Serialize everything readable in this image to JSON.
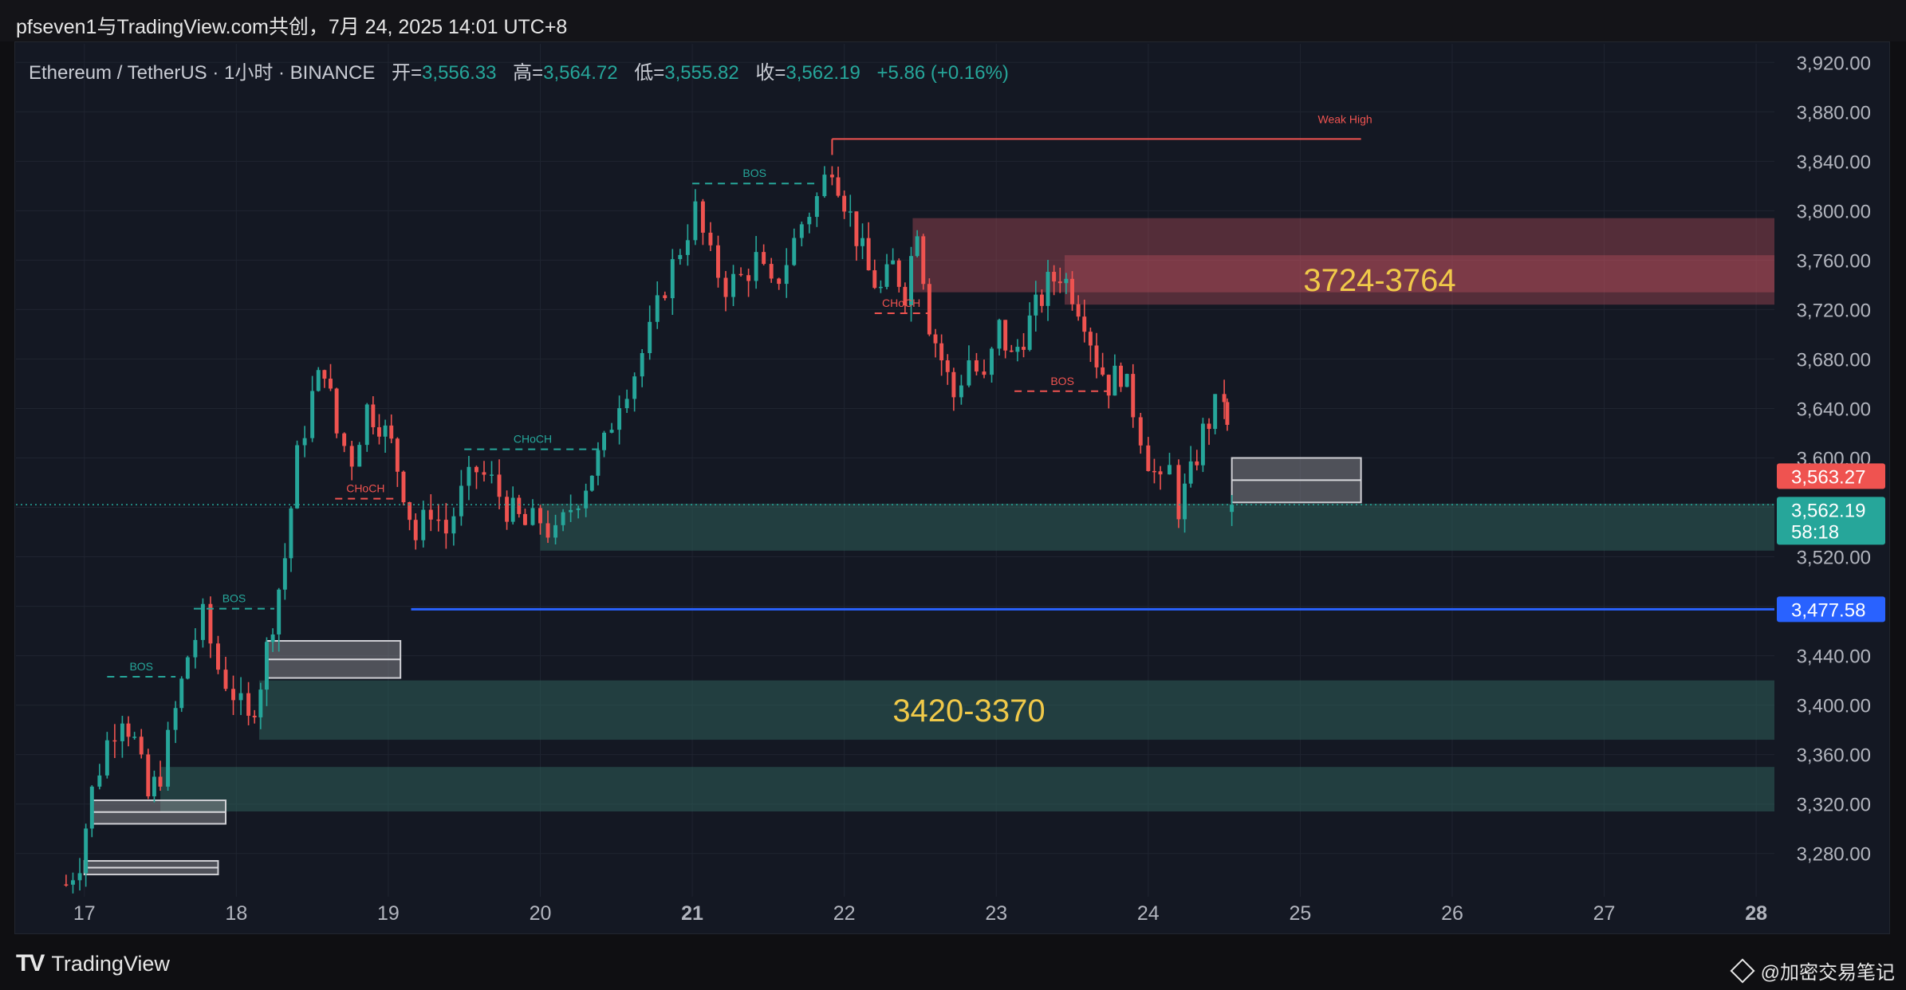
{
  "header": {
    "title": "pfseven1与TradingView.com共创，7月 24, 2025 14:01 UTC+8"
  },
  "legend": {
    "symbol": "Ethereum / TetherUS · 1小时 · BINANCE",
    "open_label": "开=",
    "open_value": "3,556.33",
    "high_label": "高=",
    "high_value": "3,564.72",
    "low_label": "低=",
    "low_value": "3,555.82",
    "close_label": "收=",
    "close_value": "3,562.19",
    "change": "+5.86 (+0.16%)"
  },
  "footer": {
    "brand": "TradingView",
    "watermark": "@加密交易笔记"
  },
  "colors": {
    "up": "#26a69a",
    "down": "#ef5350",
    "background": "#141823",
    "grid": "#1f2430",
    "blue_line": "#2962ff",
    "zone_label": "#f0c949"
  },
  "chart_data": {
    "type": "candlestick",
    "symbol": "ETHUSDT",
    "interval": "1h",
    "exchange": "BINANCE",
    "y_axis": {
      "min": 3245,
      "max": 3935,
      "ticks": [
        3920,
        3880,
        3840,
        3800,
        3760,
        3720,
        3680,
        3640,
        3600,
        3560,
        3520,
        3480,
        3440,
        3400,
        3360,
        3320,
        3280
      ],
      "tick_labels": [
        "3,920.00",
        "3,880.00",
        "3,840.00",
        "3,800.00",
        "3,760.00",
        "3,720.00",
        "3,680.00",
        "3,640.00",
        "3,600.00",
        "",
        "3,520.00",
        "",
        "3,440.00",
        "3,400.00",
        "3,360.00",
        "3,320.00",
        "3,280.00"
      ]
    },
    "x_axis": {
      "min": 16.55,
      "max": 28.12,
      "ticks": [
        {
          "value": 17,
          "label": "17",
          "bold": false
        },
        {
          "value": 18,
          "label": "18",
          "bold": false
        },
        {
          "value": 19,
          "label": "19",
          "bold": false
        },
        {
          "value": 20,
          "label": "20",
          "bold": false
        },
        {
          "value": 21,
          "label": "21",
          "bold": true
        },
        {
          "value": 22,
          "label": "22",
          "bold": false
        },
        {
          "value": 23,
          "label": "23",
          "bold": false
        },
        {
          "value": 24,
          "label": "24",
          "bold": false
        },
        {
          "value": 25,
          "label": "25",
          "bold": false
        },
        {
          "value": 26,
          "label": "26",
          "bold": false
        },
        {
          "value": 27,
          "label": "27",
          "bold": false
        },
        {
          "value": 28,
          "label": "28",
          "bold": true
        }
      ]
    },
    "price_path": [
      [
        16.88,
        3255
      ],
      [
        16.97,
        3275
      ],
      [
        17.05,
        3330
      ],
      [
        17.15,
        3370
      ],
      [
        17.25,
        3395
      ],
      [
        17.33,
        3370
      ],
      [
        17.42,
        3325
      ],
      [
        17.5,
        3345
      ],
      [
        17.6,
        3395
      ],
      [
        17.68,
        3440
      ],
      [
        17.78,
        3470
      ],
      [
        17.88,
        3430
      ],
      [
        17.98,
        3410
      ],
      [
        18.08,
        3385
      ],
      [
        18.16,
        3420
      ],
      [
        18.24,
        3470
      ],
      [
        18.32,
        3520
      ],
      [
        18.4,
        3600
      ],
      [
        18.5,
        3650
      ],
      [
        18.58,
        3675
      ],
      [
        18.66,
        3620
      ],
      [
        18.76,
        3600
      ],
      [
        18.86,
        3640
      ],
      [
        18.94,
        3630
      ],
      [
        19.02,
        3610
      ],
      [
        19.1,
        3575
      ],
      [
        19.18,
        3535
      ],
      [
        19.28,
        3560
      ],
      [
        19.38,
        3540
      ],
      [
        19.48,
        3570
      ],
      [
        19.58,
        3590
      ],
      [
        19.68,
        3580
      ],
      [
        19.78,
        3560
      ],
      [
        19.9,
        3545
      ],
      [
        20.0,
        3550
      ],
      [
        20.1,
        3535
      ],
      [
        20.2,
        3560
      ],
      [
        20.3,
        3580
      ],
      [
        20.42,
        3610
      ],
      [
        20.52,
        3650
      ],
      [
        20.62,
        3670
      ],
      [
        20.72,
        3700
      ],
      [
        20.82,
        3740
      ],
      [
        20.92,
        3770
      ],
      [
        21.02,
        3800
      ],
      [
        21.12,
        3760
      ],
      [
        21.22,
        3740
      ],
      [
        21.32,
        3745
      ],
      [
        21.42,
        3760
      ],
      [
        21.52,
        3735
      ],
      [
        21.62,
        3760
      ],
      [
        21.72,
        3790
      ],
      [
        21.82,
        3810
      ],
      [
        21.92,
        3840
      ],
      [
        22.0,
        3810
      ],
      [
        22.08,
        3780
      ],
      [
        22.16,
        3750
      ],
      [
        22.24,
        3735
      ],
      [
        22.32,
        3755
      ],
      [
        22.4,
        3735
      ],
      [
        22.48,
        3790
      ],
      [
        22.56,
        3710
      ],
      [
        22.64,
        3680
      ],
      [
        22.72,
        3650
      ],
      [
        22.82,
        3680
      ],
      [
        22.92,
        3660
      ],
      [
        23.02,
        3705
      ],
      [
        23.1,
        3680
      ],
      [
        23.18,
        3700
      ],
      [
        23.26,
        3720
      ],
      [
        23.34,
        3740
      ],
      [
        23.42,
        3750
      ],
      [
        23.5,
        3735
      ],
      [
        23.58,
        3715
      ],
      [
        23.66,
        3680
      ],
      [
        23.74,
        3660
      ],
      [
        23.82,
        3670
      ],
      [
        23.9,
        3640
      ],
      [
        24.0,
        3600
      ],
      [
        24.08,
        3575
      ],
      [
        24.14,
        3590
      ],
      [
        24.2,
        3560
      ],
      [
        24.28,
        3585
      ],
      [
        24.36,
        3620
      ],
      [
        24.44,
        3640
      ],
      [
        24.5,
        3650
      ],
      [
        24.52,
        3620
      ],
      [
        24.55,
        3562
      ]
    ],
    "current_price": {
      "value": 3562.19,
      "label": "3,562.19",
      "countdown": "58:18"
    },
    "other_price_tag": {
      "value": 3563.27,
      "label": "3,563.27"
    },
    "horizontal_line": {
      "value": 3477.58,
      "label": "3,477.58",
      "from_x": 19.15
    },
    "zones": [
      {
        "kind": "supply",
        "from_x": 22.45,
        "to_x": 28.2,
        "low": 3734,
        "high": 3794
      },
      {
        "kind": "supply",
        "from_x": 23.45,
        "to_x": 28.2,
        "low": 3724,
        "high": 3764,
        "label": "3724-3764"
      },
      {
        "kind": "demand",
        "from_x": 20.0,
        "to_x": 28.2,
        "low": 3525,
        "high": 3563
      },
      {
        "kind": "demand",
        "from_x": 18.15,
        "to_x": 28.2,
        "low": 3372,
        "high": 3420,
        "label": "3420-3370"
      },
      {
        "kind": "demand",
        "from_x": 17.5,
        "to_x": 28.2,
        "low": 3314,
        "high": 3350
      },
      {
        "kind": "gap",
        "from_x": 24.55,
        "to_x": 25.4,
        "low": 3564,
        "high": 3600
      },
      {
        "kind": "gap",
        "from_x": 18.2,
        "to_x": 19.08,
        "low": 3422,
        "high": 3452
      },
      {
        "kind": "gap",
        "from_x": 17.05,
        "to_x": 17.93,
        "low": 3304,
        "high": 3323
      },
      {
        "kind": "gap",
        "from_x": 17.0,
        "to_x": 17.88,
        "low": 3263,
        "high": 3274
      }
    ],
    "structure_lines": [
      {
        "label": "BOS",
        "dashed": true,
        "color": "up",
        "from_x": 17.15,
        "to_x": 17.6,
        "y": 3423
      },
      {
        "label": "BOS",
        "dashed": true,
        "color": "up",
        "from_x": 17.72,
        "to_x": 18.25,
        "y": 3478
      },
      {
        "label": "CHoCH",
        "dashed": true,
        "color": "down",
        "from_x": 18.65,
        "to_x": 19.05,
        "y": 3567
      },
      {
        "label": "CHoCH",
        "dashed": true,
        "color": "up",
        "from_x": 19.5,
        "to_x": 20.4,
        "y": 3607
      },
      {
        "label": "BOS",
        "dashed": true,
        "color": "up",
        "from_x": 21.0,
        "to_x": 21.82,
        "y": 3822
      },
      {
        "label": "CHoCH",
        "dashed": true,
        "color": "down",
        "from_x": 22.2,
        "to_x": 22.55,
        "y": 3717
      },
      {
        "label": "BOS",
        "dashed": true,
        "color": "down",
        "from_x": 23.12,
        "to_x": 23.75,
        "y": 3654
      },
      {
        "label": "Weak High",
        "dashed": false,
        "color": "down",
        "from_x": 21.92,
        "to_x": 25.4,
        "y": 3858
      }
    ]
  }
}
